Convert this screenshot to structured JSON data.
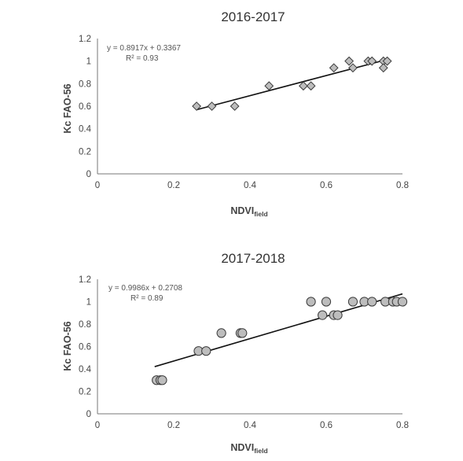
{
  "chart_data": [
    {
      "type": "scatter",
      "title": "2016-2017",
      "xlabel_main": "NDVI",
      "xlabel_sub": "field",
      "ylabel": "Kc FAO-56",
      "xlim": [
        0,
        0.8
      ],
      "ylim": [
        0,
        1.2
      ],
      "x_ticks": [
        "0",
        "0.2",
        "0.4",
        "0.6",
        "0.8"
      ],
      "y_ticks": [
        "0",
        "0.2",
        "0.4",
        "0.6",
        "0.8",
        "1",
        "1.2"
      ],
      "marker": "diamond",
      "equation": "y = 0.8917x + 0.3367",
      "r2_label": "R² = 0.93",
      "trendline": {
        "slope": 0.8917,
        "intercept": 0.3367,
        "x_range": [
          0.26,
          0.76
        ]
      },
      "x": [
        0.26,
        0.3,
        0.36,
        0.45,
        0.54,
        0.56,
        0.62,
        0.66,
        0.67,
        0.71,
        0.72,
        0.75,
        0.75,
        0.76
      ],
      "y": [
        0.6,
        0.6,
        0.6,
        0.78,
        0.78,
        0.78,
        0.94,
        1.0,
        0.94,
        1.0,
        1.0,
        1.0,
        0.94,
        1.0
      ],
      "grid": false
    },
    {
      "type": "scatter",
      "title": "2017-2018",
      "xlabel_main": "NDVI",
      "xlabel_sub": "field",
      "ylabel": "Kc FAO-56",
      "xlim": [
        0,
        0.8
      ],
      "ylim": [
        0,
        1.2
      ],
      "x_ticks": [
        "0",
        "0.2",
        "0.4",
        "0.6",
        "0.8"
      ],
      "y_ticks": [
        "0",
        "0.2",
        "0.4",
        "0.6",
        "0.8",
        "1",
        "1.2"
      ],
      "marker": "circle",
      "equation": "y = 0.9986x + 0.2708",
      "r2_label": "R² = 0.89",
      "trendline": {
        "slope": 0.9986,
        "intercept": 0.2708,
        "x_range": [
          0.15,
          0.8
        ]
      },
      "x": [
        0.155,
        0.165,
        0.17,
        0.265,
        0.285,
        0.325,
        0.375,
        0.38,
        0.56,
        0.59,
        0.6,
        0.62,
        0.63,
        0.67,
        0.7,
        0.72,
        0.755,
        0.775,
        0.785,
        0.8
      ],
      "y": [
        0.3,
        0.3,
        0.3,
        0.56,
        0.56,
        0.72,
        0.72,
        0.72,
        1.0,
        0.88,
        1.0,
        0.88,
        0.88,
        1.0,
        1.0,
        1.0,
        1.0,
        1.0,
        1.0,
        1.0
      ],
      "grid": false
    }
  ],
  "colors": {
    "marker_fill": "#bdbdbd",
    "marker_stroke": "#3a3a3a",
    "trendline": "#111111",
    "axis": "#777777",
    "text": "#444444"
  }
}
